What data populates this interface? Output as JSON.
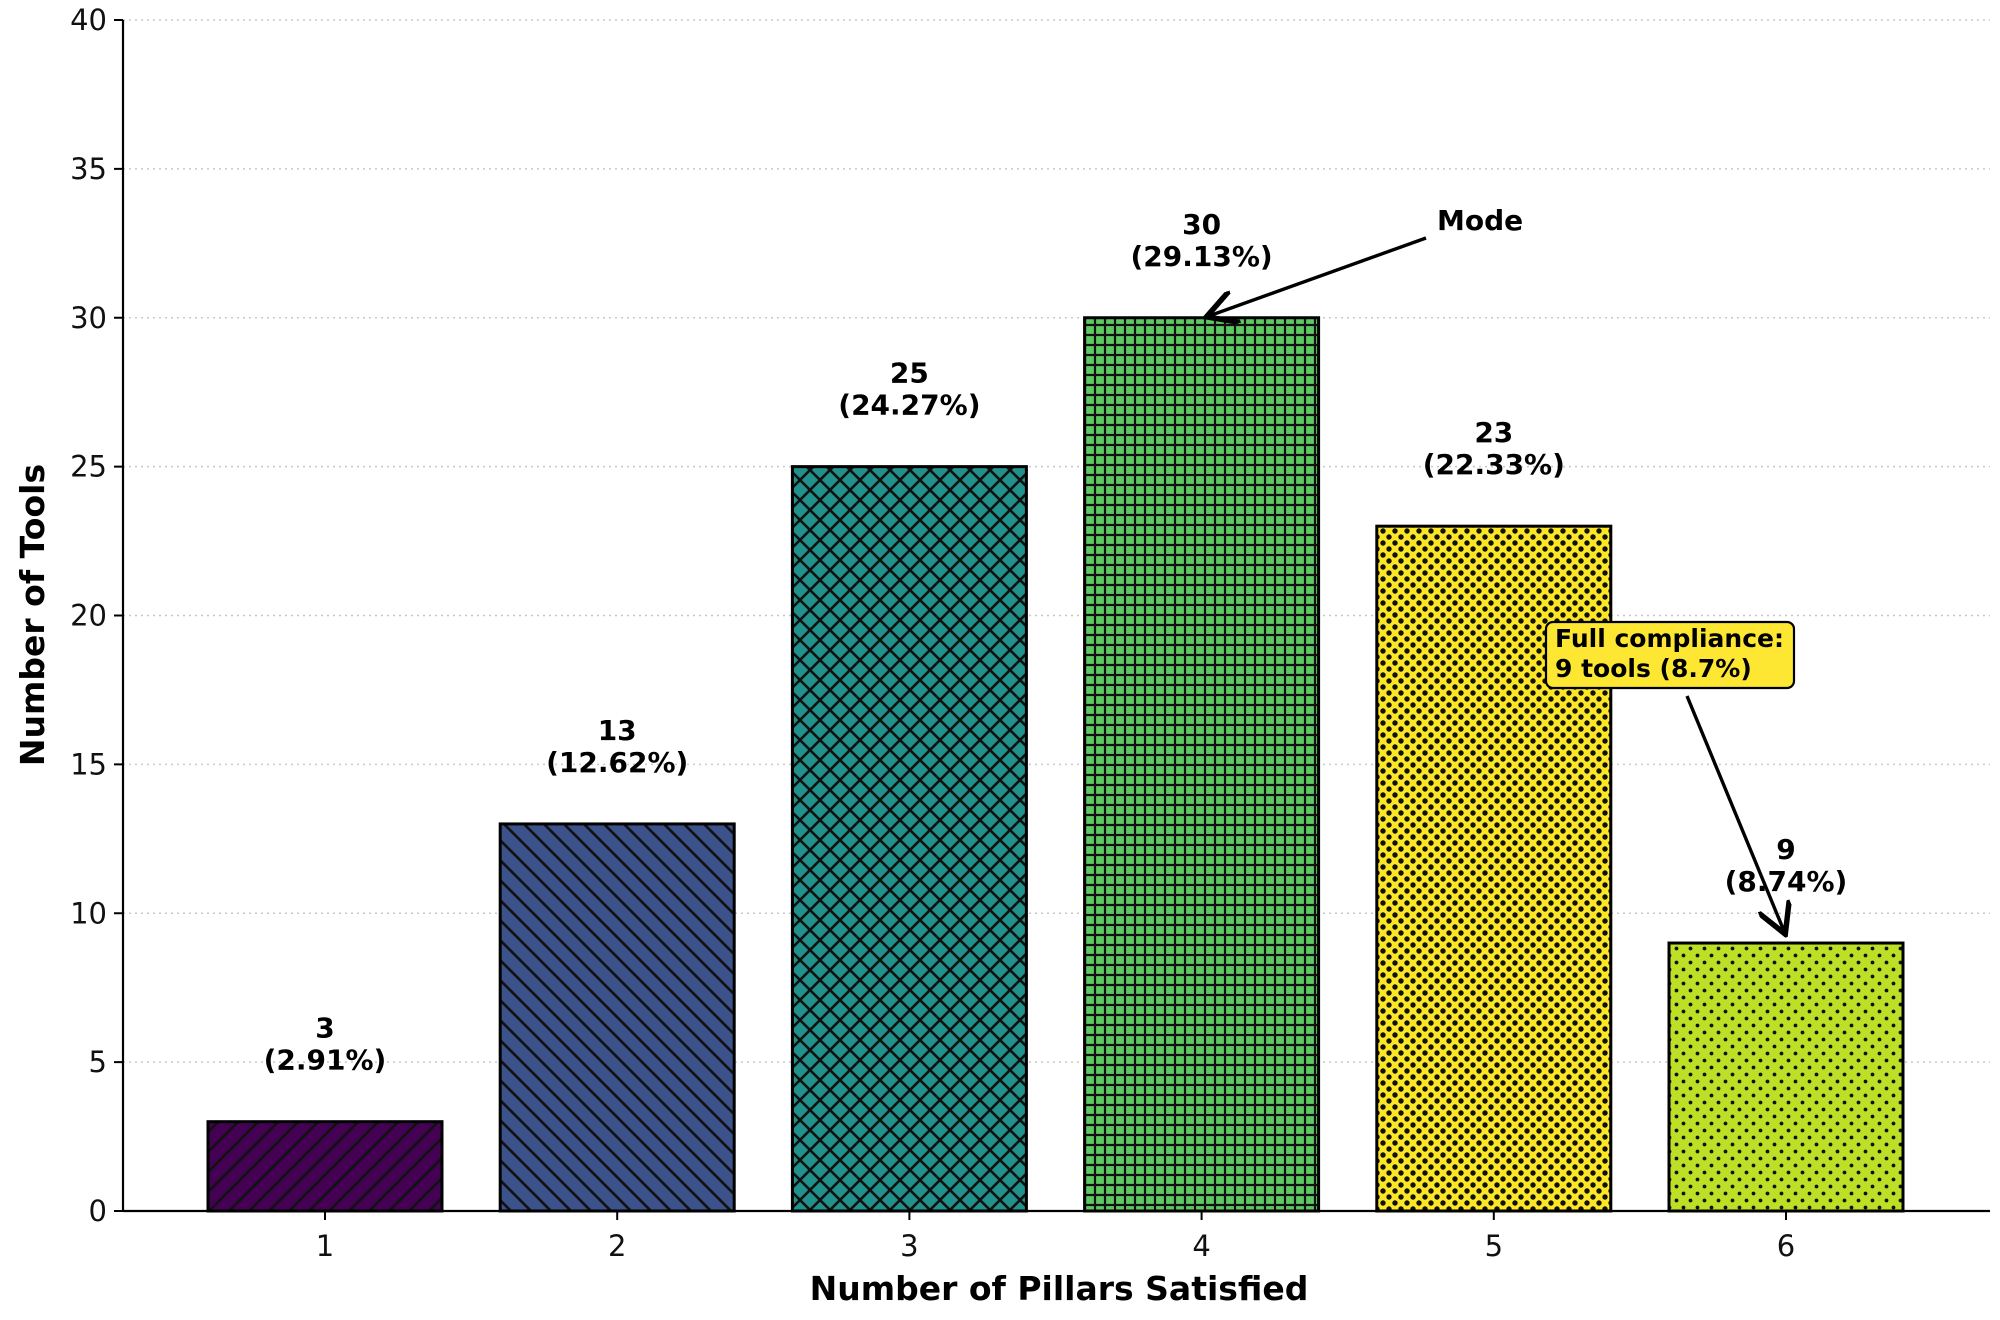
{
  "chart_data": {
    "type": "bar",
    "title": "",
    "xlabel": "Number of Pillars Satisfied",
    "ylabel": "Number of Tools",
    "categories": [
      "1",
      "2",
      "3",
      "4",
      "5",
      "6"
    ],
    "values": [
      3,
      13,
      25,
      30,
      23,
      9
    ],
    "value_labels": [
      "3",
      "13",
      "25",
      "30",
      "23",
      "9"
    ],
    "percent_labels": [
      "(2.91%)",
      "(12.62%)",
      "(24.27%)",
      "(29.13%)",
      "(22.33%)",
      "(8.74%)"
    ],
    "colors": [
      "#440154",
      "#3b528b",
      "#21918c",
      "#5ec962",
      "#fde725",
      "#bddf26"
    ],
    "hatches": [
      "forward-diagonal",
      "back-diagonal",
      "cross-diagonal",
      "grid",
      "dense-dots",
      "dots"
    ],
    "ylim": [
      0,
      40
    ],
    "yticks": [
      "0",
      "5",
      "10",
      "15",
      "20",
      "25",
      "30",
      "35",
      "40"
    ],
    "grid": "y-dotted",
    "annotations": {
      "mode": {
        "text": "Mode",
        "points_to": "4"
      },
      "full_compliance": {
        "lines": [
          "Full compliance:",
          "9 tools (8.7%)"
        ],
        "box_color": "#fde732",
        "points_to": "6"
      }
    }
  }
}
